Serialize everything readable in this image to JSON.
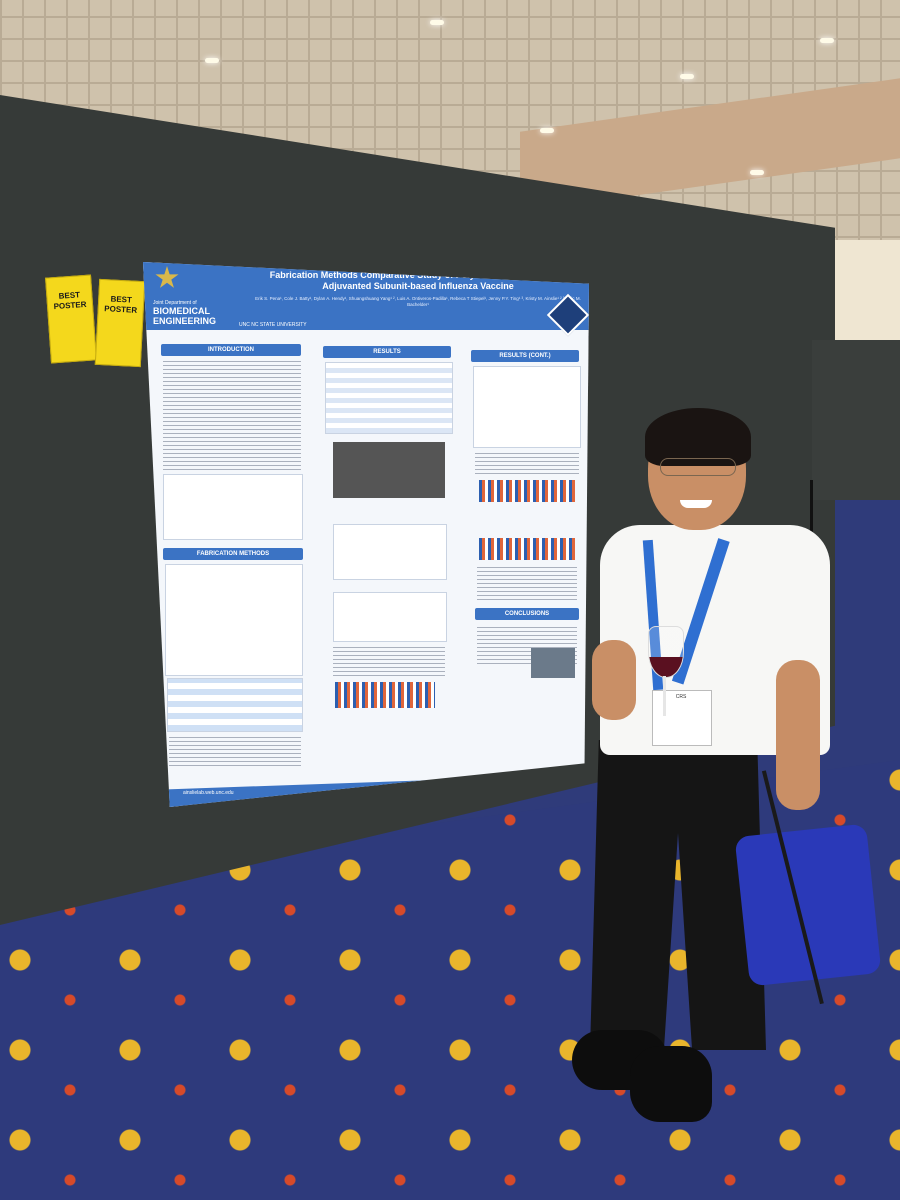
{
  "poster": {
    "title": "Fabrication Methods Comparative Study of Polymeric Particles for an Adjuvanted Subunit-based Influenza Vaccine",
    "authors": "Erik S. Pena¹, Cole J. Batty¹, Dylan A. Hendy¹, Shuangshuang Yang¹ ², Luis A. Ontiveros-Padilla¹, Rebeca T Stiepel¹, Jenny P.Y. Ting¹ ³, Kristy M. Ainslie¹ ² ³, Eric M. Bachelder¹",
    "dept_line": "Joint Department of",
    "dept_1": "BIOMEDICAL",
    "dept_2": "ENGINEERING",
    "uni": "UNC  NC STATE UNIVERSITY",
    "sections": {
      "introduction": "INTRODUCTION",
      "results": "RESULTS",
      "results_cont": "RESULTS (CONT.)",
      "fabrication": "FABRICATION METHODS",
      "conclusions": "CONCLUSIONS"
    },
    "url": "ainslielab.web.unc.edu"
  },
  "stickers": [
    {
      "line1": "BEST",
      "line2": "POSTER"
    },
    {
      "line1": "BEST",
      "line2": "POSTER"
    }
  ],
  "badge": {
    "org": "CRS"
  }
}
